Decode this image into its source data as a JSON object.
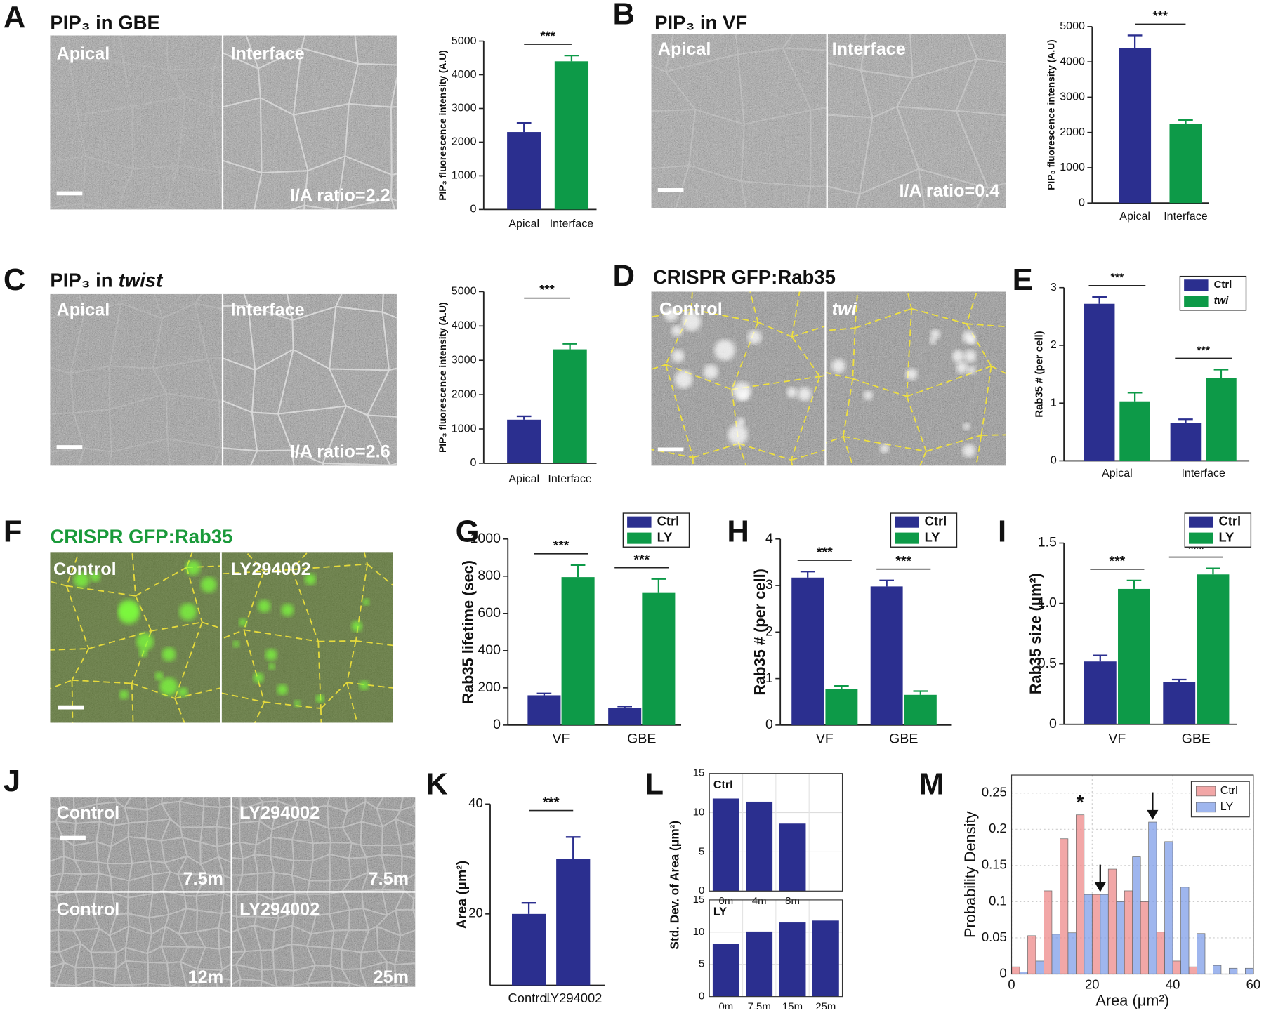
{
  "image_panels": [
    {
      "letter": "A",
      "heading": "PIP₃ in GBE",
      "labels": [
        "Apical",
        "Interface",
        "I/A ratio=2.2"
      ]
    },
    {
      "letter": "B",
      "heading": "PIP₃ in VF",
      "labels": [
        "Apical",
        "Interface",
        "I/A ratio=0.4"
      ]
    },
    {
      "letter": "C",
      "heading": "PIP₃ in",
      "heading_italic": "twist",
      "labels": [
        "Apical",
        "Interface",
        "I/A ratio=2.6"
      ]
    },
    {
      "letter": "D",
      "heading": "CRISPR GFP:Rab35",
      "labels": [
        "Control",
        "twi"
      ]
    },
    {
      "letter": "F",
      "heading": "CRISPR GFP:Rab35",
      "labels": [
        "Control",
        "LY294002"
      ]
    },
    {
      "letter": "J",
      "labels": [
        "Control",
        "LY294002",
        "7.5m",
        "7.5m",
        "Control",
        "LY294002",
        "12m",
        "25m"
      ]
    }
  ],
  "chart_data": [
    {
      "type": "bar",
      "categories": [
        "Apical",
        "Interface"
      ],
      "values": [
        2300,
        4400
      ],
      "errors": [
        270,
        170
      ],
      "colors": [
        "#2b2f8f",
        "#0d9a48"
      ],
      "ylabel": "PIP₃ fluorescence intensity (A.U)",
      "ylim": [
        0,
        5000
      ],
      "yticks": [
        0,
        1000,
        2000,
        3000,
        4000,
        5000
      ],
      "significance": "***"
    },
    {
      "type": "bar",
      "categories": [
        "Apical",
        "Interface"
      ],
      "values": [
        4400,
        2250
      ],
      "errors": [
        350,
        100
      ],
      "colors": [
        "#2b2f8f",
        "#0d9a48"
      ],
      "ylabel": "PIP₃ fluorescence intensity (A.U)",
      "ylim": [
        0,
        5000
      ],
      "yticks": [
        0,
        1000,
        2000,
        3000,
        4000,
        5000
      ],
      "significance": "***"
    },
    {
      "type": "bar",
      "categories": [
        "Apical",
        "Interface"
      ],
      "values": [
        1270,
        3320
      ],
      "errors": [
        100,
        160
      ],
      "colors": [
        "#2b2f8f",
        "#0d9a48"
      ],
      "ylabel": "PIP₃ fluorescence intensity (A.U)",
      "ylim": [
        0,
        5000
      ],
      "yticks": [
        0,
        1000,
        2000,
        3000,
        4000,
        5000
      ],
      "significance": "***"
    },
    {
      "type": "grouped_bar",
      "letter": "E",
      "categories": [
        "Apical",
        "Interface"
      ],
      "series": [
        {
          "name": "Ctrl",
          "color": "#2b2f8f",
          "values": [
            2.72,
            0.65
          ],
          "errors": [
            0.12,
            0.07
          ]
        },
        {
          "name": "twi",
          "color": "#0d9a48",
          "values": [
            1.03,
            1.43
          ],
          "errors": [
            0.15,
            0.15
          ],
          "italic": true
        }
      ],
      "ylabel": "Rab35 # (per cell)",
      "ylim": [
        0,
        3
      ],
      "yticks": [
        0,
        1,
        2,
        3
      ],
      "significance": [
        "***",
        "***"
      ],
      "legend": "upper right"
    },
    {
      "type": "grouped_bar",
      "letter": "G",
      "categories": [
        "VF",
        "GBE"
      ],
      "series": [
        {
          "name": "Ctrl",
          "color": "#2b2f8f",
          "values": [
            160,
            92
          ],
          "errors": [
            10,
            8
          ]
        },
        {
          "name": "LY",
          "color": "#0d9a48",
          "values": [
            795,
            710
          ],
          "errors": [
            65,
            75
          ]
        }
      ],
      "ylabel": "Rab35 lifetime (sec)",
      "ylim": [
        0,
        1000
      ],
      "yticks": [
        0,
        200,
        400,
        600,
        800,
        1000
      ],
      "significance": [
        "***",
        "***"
      ],
      "legend": "upper right"
    },
    {
      "type": "grouped_bar",
      "letter": "H",
      "categories": [
        "VF",
        "GBE"
      ],
      "series": [
        {
          "name": "Ctrl",
          "color": "#2b2f8f",
          "values": [
            3.17,
            2.98
          ],
          "errors": [
            0.13,
            0.13
          ]
        },
        {
          "name": "LY",
          "color": "#0d9a48",
          "values": [
            0.77,
            0.65
          ],
          "errors": [
            0.07,
            0.08
          ]
        }
      ],
      "ylabel": "Rab35 # (per cell)",
      "ylim": [
        0,
        4
      ],
      "yticks": [
        0,
        1,
        2,
        3,
        4
      ],
      "significance": [
        "***",
        "***"
      ],
      "legend": "upper right"
    },
    {
      "type": "grouped_bar",
      "letter": "I",
      "categories": [
        "VF",
        "GBE"
      ],
      "series": [
        {
          "name": "Ctrl",
          "color": "#2b2f8f",
          "values": [
            0.52,
            0.35
          ],
          "errors": [
            0.05,
            0.02
          ]
        },
        {
          "name": "LY",
          "color": "#0d9a48",
          "values": [
            1.12,
            1.24
          ],
          "errors": [
            0.07,
            0.05
          ]
        }
      ],
      "ylabel": "Rab35 size (μm²)",
      "ylim": [
        0,
        1.5
      ],
      "yticks": [
        0,
        0.5,
        {
          "value": 1,
          "label": "1.0"
        },
        1.5
      ],
      "significance": [
        "***",
        "***"
      ],
      "legend": "upper right"
    },
    {
      "type": "bar",
      "letter": "K",
      "categories": [
        "Control",
        "LY294002"
      ],
      "values": [
        20,
        30
      ],
      "errors": [
        2,
        4
      ],
      "colors": [
        "#2b2f8f",
        "#2b2f8f"
      ],
      "ylabel": "Area (μm²)",
      "ylim": [
        7,
        40
      ],
      "yticks": [
        20,
        40
      ],
      "significance": "***"
    },
    {
      "type": "bar_subplots",
      "letter": "L",
      "ylabel": "Std. Dev. of Area (μm²)",
      "color": "#2b2f8f",
      "grid": true,
      "subplots": [
        {
          "label": "Ctrl",
          "categories": [
            "0m",
            "4m",
            "8m",
            null
          ],
          "values": [
            11.8,
            11.4,
            8.6,
            null
          ],
          "ylim": [
            0,
            15
          ],
          "yticks": [
            0,
            5,
            10,
            15
          ]
        },
        {
          "label": "LY",
          "categories": [
            "0m",
            "7.5m",
            "15m",
            "25m"
          ],
          "values": [
            8.2,
            10.1,
            11.5,
            11.8
          ],
          "ylim": [
            0,
            15
          ],
          "yticks": [
            0,
            5,
            10,
            15
          ]
        }
      ]
    },
    {
      "type": "histogram",
      "letter": "M",
      "xlabel": "Area (μm²)",
      "ylabel": "Probability Density",
      "bins": [
        0,
        4,
        8,
        12,
        16,
        20,
        24,
        28,
        32,
        36,
        40,
        44,
        48,
        52,
        56,
        60
      ],
      "series": [
        {
          "name": "Ctrl",
          "color": "#ee8a8a",
          "values": [
            0.01,
            0.053,
            0.115,
            0.187,
            0.22,
            0.11,
            0.145,
            0.115,
            0.1,
            0.058,
            0.018,
            0.01,
            0,
            0,
            0
          ]
        },
        {
          "name": "LY",
          "color": "#7f9ee8",
          "values": [
            0.003,
            0.018,
            0.055,
            0.057,
            0.11,
            0.11,
            0.1,
            0.162,
            0.21,
            0.183,
            0.12,
            0.056,
            0.012,
            0.008,
            0.008
          ]
        }
      ],
      "xlim": [
        0,
        60
      ],
      "xticks": [
        0,
        20,
        40,
        60
      ],
      "ylim": [
        0,
        0.275
      ],
      "yticks": [
        0,
        0.05,
        0.1,
        0.15,
        0.2,
        0.25
      ],
      "grid": true,
      "legend": "upper right",
      "markers": [
        22,
        35
      ],
      "annotations": [
        {
          "text": "*",
          "x": 17
        }
      ]
    }
  ]
}
